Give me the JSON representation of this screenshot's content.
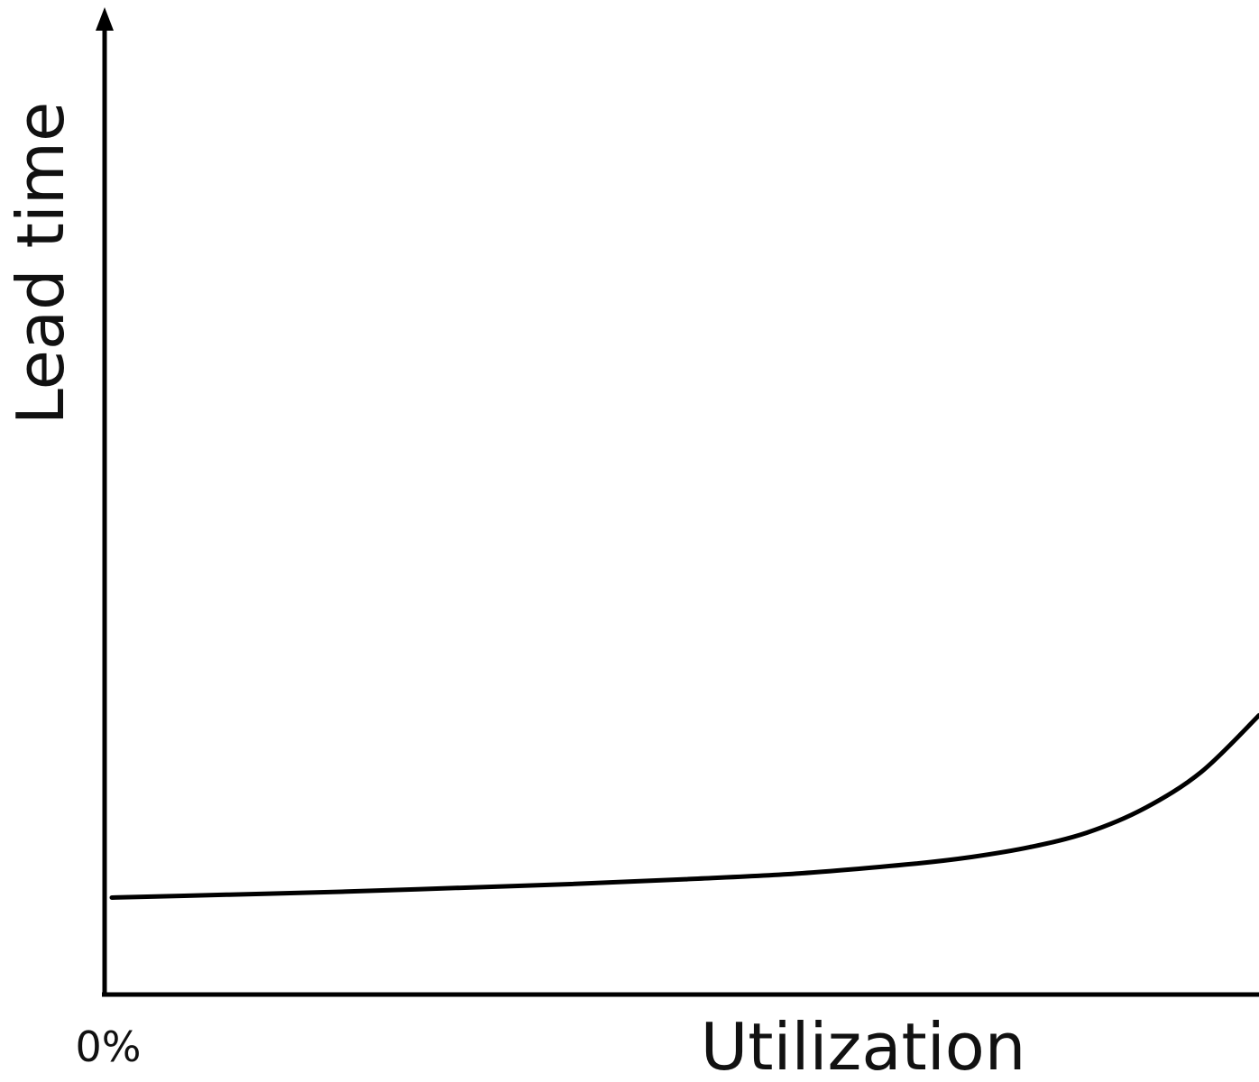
{
  "chart_data": {
    "type": "line",
    "title": "",
    "xlabel": "Utilization",
    "ylabel": "Lead time",
    "x_tick_labels": [
      "0%"
    ],
    "grid": false,
    "legend": "none",
    "x_axis_arrow": false,
    "y_axis_arrow": true,
    "series": [
      {
        "x": [
          0.0,
          0.1,
          0.2,
          0.3,
          0.4,
          0.5,
          0.6,
          0.7,
          0.75,
          0.8,
          0.85,
          0.9,
          0.95,
          1.0
        ],
        "y": [
          1.0,
          1.03,
          1.06,
          1.1,
          1.14,
          1.19,
          1.25,
          1.35,
          1.42,
          1.52,
          1.67,
          1.92,
          2.3,
          2.88
        ],
        "color": "#000000"
      }
    ],
    "xlim": [
      0.0,
      1.0
    ],
    "ylim": [
      0.0,
      10.0
    ]
  },
  "colors": {
    "axis": "#000000",
    "curve": "#000000",
    "background": "#ffffff"
  }
}
